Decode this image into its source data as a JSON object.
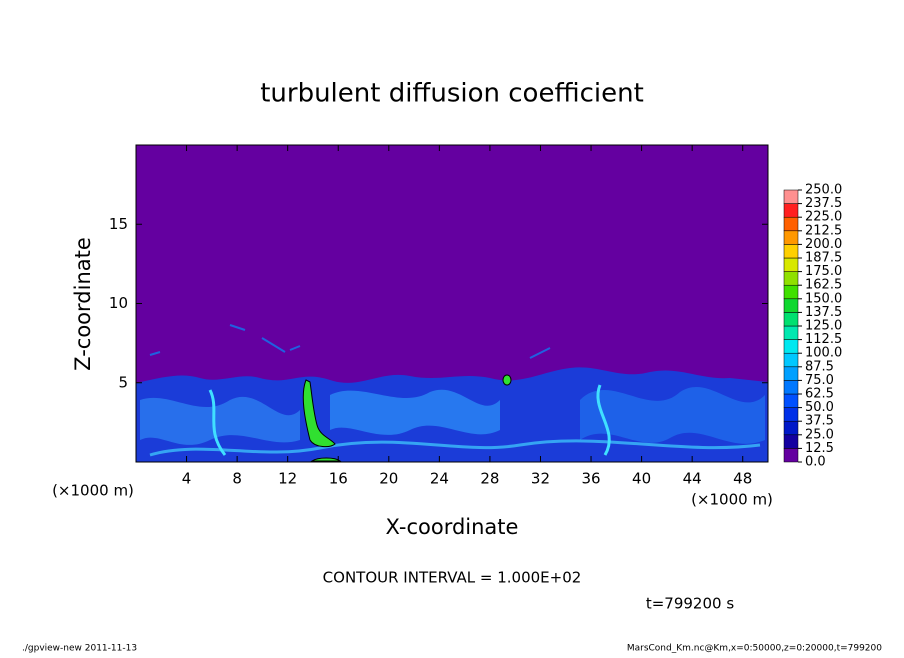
{
  "chart_data": {
    "type": "contour",
    "title": "turbulent diffusion coefficient",
    "xlabel": "X-coordinate",
    "ylabel": "Z-coordinate",
    "x_unit_label": "(×1000 m)",
    "y_unit_label": "(×1000 m)",
    "xlim": [
      0,
      50
    ],
    "ylim": [
      0,
      20
    ],
    "xticks": [
      4,
      8,
      12,
      16,
      20,
      24,
      28,
      32,
      36,
      40,
      44,
      48
    ],
    "yticks": [
      5,
      10,
      15
    ],
    "contour_interval": "CONTOUR INTERVAL = 1.000E+02",
    "time_label": "t=799200 s",
    "footer_left": "./gpview-new   2011-11-13",
    "footer_right": "MarsCond_Km.nc@Km,x=0:50000,z=0:20000,t=799200",
    "colorbar": {
      "ticks": [
        {
          "value": 0,
          "label": "0.0"
        },
        12.5,
        25,
        37.5,
        50,
        62.5,
        75,
        87.5,
        100,
        112.5,
        125,
        137.5,
        150,
        162.5,
        175,
        187.5,
        200,
        212.5,
        225,
        237.5,
        250
      ],
      "colors": [
        "#6400a0",
        "#1400a0",
        "#0018c8",
        "#0030e8",
        "#0050ff",
        "#0078ff",
        "#00a0ff",
        "#00c8ff",
        "#00e8f0",
        "#00e8b0",
        "#00e070",
        "#10d830",
        "#40e000",
        "#90e000",
        "#d8e800",
        "#ffd000",
        "#ff9800",
        "#ff6000",
        "#ff2020",
        "#ff9090"
      ]
    }
  }
}
